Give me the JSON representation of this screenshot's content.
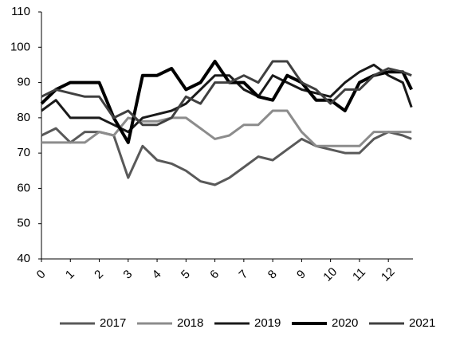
{
  "chart_data": {
    "type": "line",
    "x": [
      0,
      0.5,
      1,
      1.5,
      2,
      2.5,
      3,
      3.5,
      4,
      4.5,
      5,
      5.5,
      6,
      6.5,
      7,
      7.5,
      8,
      8.5,
      9,
      9.5,
      10,
      10.5,
      11,
      11.5,
      12,
      12.5,
      12.8
    ],
    "series": [
      {
        "name": "2017",
        "color": "#595959",
        "width": 3,
        "values": [
          75,
          77,
          73,
          76,
          76,
          75,
          63,
          72,
          68,
          67,
          65,
          62,
          61,
          63,
          66,
          69,
          68,
          71,
          74,
          72,
          71,
          70,
          70,
          74,
          76,
          75,
          74
        ]
      },
      {
        "name": "2018",
        "color": "#8c8c8c",
        "width": 3,
        "values": [
          73,
          73,
          73,
          73,
          76,
          75,
          80,
          79,
          79,
          80,
          80,
          77,
          74,
          75,
          78,
          78,
          82,
          82,
          76,
          72,
          72,
          72,
          72,
          76,
          76,
          76,
          76
        ]
      },
      {
        "name": "2019",
        "color": "#1a1a1a",
        "width": 3,
        "values": [
          82,
          85,
          80,
          80,
          80,
          78,
          76,
          80,
          81,
          82,
          84,
          88,
          92,
          92,
          88,
          86,
          92,
          90,
          88,
          87,
          86,
          90,
          93,
          95,
          92,
          90,
          83
        ]
      },
      {
        "name": "2020",
        "color": "#000000",
        "width": 4,
        "values": [
          84,
          88,
          90,
          90,
          90,
          80,
          73,
          92,
          92,
          94,
          88,
          90,
          96,
          90,
          90,
          86,
          85,
          92,
          90,
          85,
          85,
          82,
          90,
          92,
          93,
          93,
          88
        ]
      },
      {
        "name": "2021",
        "color": "#404040",
        "width": 3,
        "values": [
          86,
          88,
          87,
          86,
          86,
          80,
          82,
          78,
          78,
          80,
          86,
          84,
          90,
          90,
          92,
          90,
          96,
          96,
          90,
          88,
          84,
          88,
          88,
          92,
          94,
          93,
          92
        ]
      }
    ],
    "xlim": [
      0,
      12.85
    ],
    "xticks": [
      0,
      1,
      2,
      3,
      4,
      5,
      6,
      7,
      8,
      9,
      10,
      11,
      12
    ],
    "ylim": [
      40,
      110
    ],
    "yticks": [
      40,
      50,
      60,
      70,
      80,
      90,
      100,
      110
    ]
  }
}
